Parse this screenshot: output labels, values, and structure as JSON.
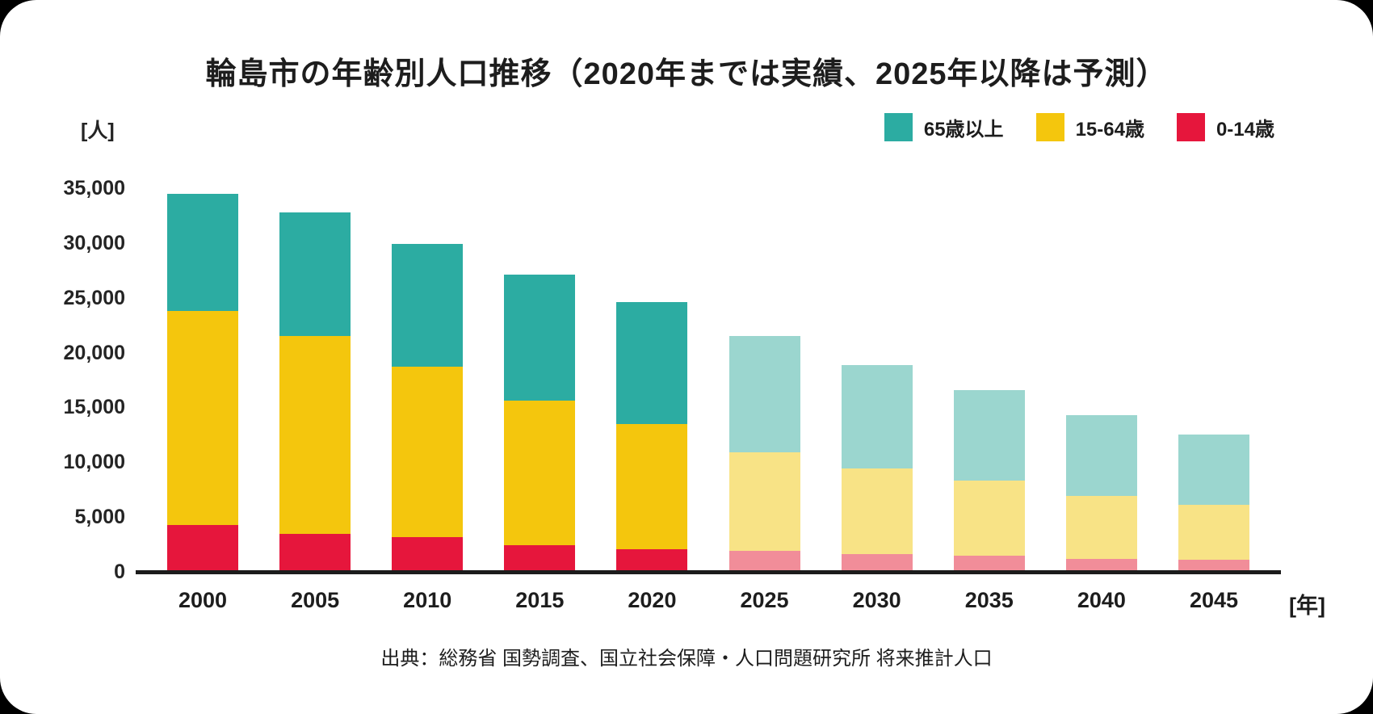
{
  "title": "輪島市の年齢別人口推移（2020年までは実績、2025年以降は予測）",
  "y_axis": {
    "unit_label": "[人]",
    "ticks": [
      0,
      5000,
      10000,
      15000,
      20000,
      25000,
      30000,
      35000
    ],
    "max": 35000
  },
  "x_axis": {
    "unit_label": "[年]"
  },
  "legend": [
    {
      "label": "65歳以上",
      "color": "#2CACA2"
    },
    {
      "label": "15-64歳",
      "color": "#F4C60D"
    },
    {
      "label": "0-14歳",
      "color": "#E6163C"
    }
  ],
  "colors": {
    "actual": {
      "0-14歳": "#E6163C",
      "15-64歳": "#F4C60D",
      "65歳以上": "#2CACA2"
    },
    "forecast": {
      "0-14歳": "#F18D99",
      "15-64歳": "#F8E386",
      "65歳以上": "#9BD6CF"
    },
    "axis": "#1C1C1C",
    "text": "#1D1D1D"
  },
  "source": "出典：総務省 国勢調査、国立社会保障・人口問題研究所 将来推計人口",
  "chart_data": {
    "type": "bar",
    "stacked": true,
    "title": "輪島市の年齢別人口推移（2020年までは実績、2025年以降は予測）",
    "categories": [
      "2000",
      "2005",
      "2010",
      "2015",
      "2020",
      "2025",
      "2030",
      "2035",
      "2040",
      "2045"
    ],
    "forecast_from_category": "2025",
    "series": [
      {
        "name": "0-14歳",
        "values": [
          4300,
          3500,
          3200,
          2400,
          2100,
          1900,
          1600,
          1500,
          1200,
          1100
        ]
      },
      {
        "name": "15-64歳",
        "values": [
          19500,
          18000,
          15500,
          13200,
          11400,
          9000,
          7800,
          6800,
          5700,
          5000
        ]
      },
      {
        "name": "65歳以上",
        "values": [
          10700,
          11300,
          11200,
          11500,
          11100,
          10600,
          9500,
          8300,
          7400,
          6400
        ]
      }
    ],
    "totals": [
      34500,
      32800,
      29900,
      27100,
      24600,
      21500,
      18900,
      16600,
      14300,
      12500
    ],
    "xlabel": "年",
    "ylabel": "人",
    "ylim": [
      0,
      35000
    ],
    "ytick_step": 5000,
    "grid": false,
    "legend_position": "top-right"
  }
}
